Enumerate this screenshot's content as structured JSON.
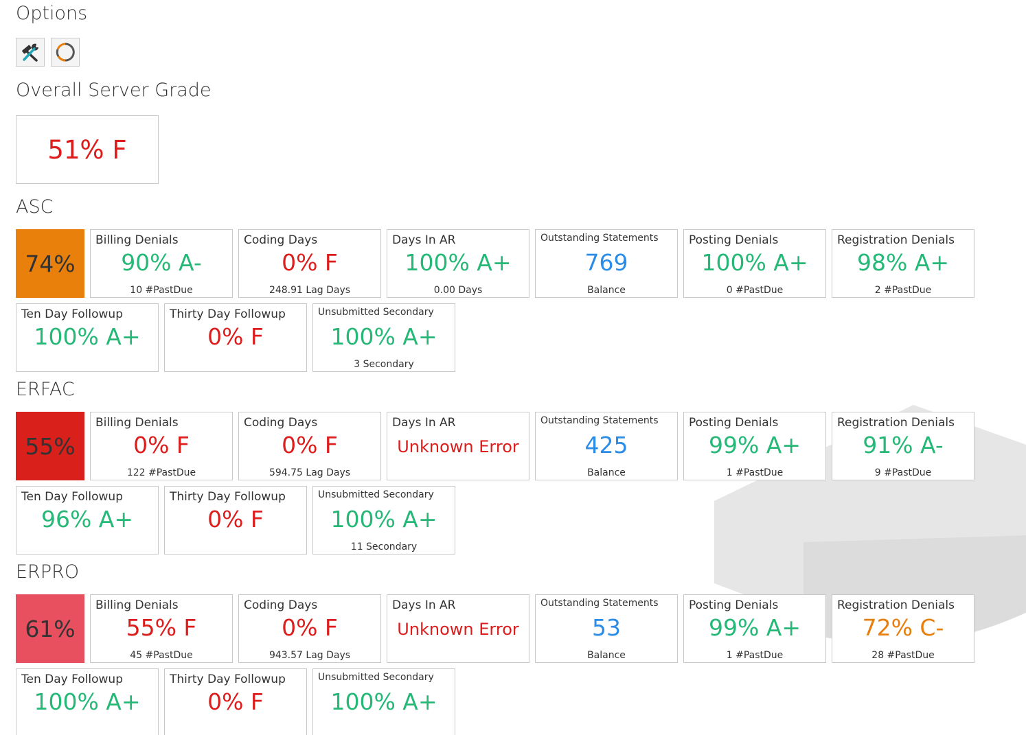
{
  "colors": {
    "green": "#25b877",
    "red": "#dd1c1c",
    "orange": "#e87e0c",
    "blue": "#2b8ce8",
    "grade_orange": "#e8800b",
    "grade_red": "#d9201a",
    "grade_pink": "#e85060"
  },
  "options": {
    "title": "Options",
    "buttons": [
      {
        "name": "tools-icon"
      },
      {
        "name": "refresh-icon"
      }
    ]
  },
  "overall": {
    "title": "Overall Server Grade",
    "value": "51% F",
    "color": "#dd1c1c"
  },
  "groups": [
    {
      "name": "ASC",
      "grade": "74%",
      "grade_color": "#e8800b",
      "tiles": [
        {
          "label": "Billing Denials",
          "value": "90% A-",
          "color": "#25b877",
          "sub": "10 #PastDue"
        },
        {
          "label": "Coding Days",
          "value": "0% F",
          "color": "#dd1c1c",
          "sub": "248.91 Lag Days"
        },
        {
          "label": "Days In AR",
          "value": "100% A+",
          "color": "#25b877",
          "sub": "0.00 Days"
        },
        {
          "label": "Outstanding Statements",
          "small": true,
          "value": "769",
          "color": "#2b8ce8",
          "sub": "Balance"
        },
        {
          "label": "Posting Denials",
          "value": "100% A+",
          "color": "#25b877",
          "sub": "0 #PastDue"
        },
        {
          "label": "Registration Denials",
          "value": "98% A+",
          "color": "#25b877",
          "sub": "2 #PastDue"
        }
      ],
      "tiles2": [
        {
          "label": "Ten Day Followup",
          "value": "100% A+",
          "color": "#25b877",
          "sub": ""
        },
        {
          "label": "Thirty Day Followup",
          "value": "0% F",
          "color": "#dd1c1c",
          "sub": ""
        },
        {
          "label": "Unsubmitted Secondary",
          "small": true,
          "value": "100% A+",
          "color": "#25b877",
          "sub": "3 Secondary"
        }
      ]
    },
    {
      "name": "ERFAC",
      "grade": "55%",
      "grade_color": "#d9201a",
      "tiles": [
        {
          "label": "Billing Denials",
          "value": "0% F",
          "color": "#dd1c1c",
          "sub": "122 #PastDue"
        },
        {
          "label": "Coding Days",
          "value": "0% F",
          "color": "#dd1c1c",
          "sub": "594.75 Lag Days"
        },
        {
          "label": "Days In AR",
          "value": "Unknown Error",
          "color": "#dd1c1c",
          "err": true,
          "sub": ""
        },
        {
          "label": "Outstanding Statements",
          "small": true,
          "value": "425",
          "color": "#2b8ce8",
          "sub": "Balance"
        },
        {
          "label": "Posting Denials",
          "value": "99% A+",
          "color": "#25b877",
          "sub": "1 #PastDue"
        },
        {
          "label": "Registration Denials",
          "value": "91% A-",
          "color": "#25b877",
          "sub": "9 #PastDue"
        }
      ],
      "tiles2": [
        {
          "label": "Ten Day Followup",
          "value": "96% A+",
          "color": "#25b877",
          "sub": ""
        },
        {
          "label": "Thirty Day Followup",
          "value": "0% F",
          "color": "#dd1c1c",
          "sub": ""
        },
        {
          "label": "Unsubmitted Secondary",
          "small": true,
          "value": "100% A+",
          "color": "#25b877",
          "sub": "11 Secondary"
        }
      ]
    },
    {
      "name": "ERPRO",
      "grade": "61%",
      "grade_color": "#e85060",
      "tiles": [
        {
          "label": "Billing Denials",
          "value": "55% F",
          "color": "#dd1c1c",
          "sub": "45 #PastDue"
        },
        {
          "label": "Coding Days",
          "value": "0% F",
          "color": "#dd1c1c",
          "sub": "943.57 Lag Days"
        },
        {
          "label": "Days In AR",
          "value": "Unknown Error",
          "color": "#dd1c1c",
          "err": true,
          "sub": ""
        },
        {
          "label": "Outstanding Statements",
          "small": true,
          "value": "53",
          "color": "#2b8ce8",
          "sub": "Balance"
        },
        {
          "label": "Posting Denials",
          "value": "99% A+",
          "color": "#25b877",
          "sub": "1 #PastDue"
        },
        {
          "label": "Registration Denials",
          "value": "72% C-",
          "color": "#e87e0c",
          "sub": "28 #PastDue"
        }
      ],
      "tiles2": [
        {
          "label": "Ten Day Followup",
          "value": "100% A+",
          "color": "#25b877",
          "sub": ""
        },
        {
          "label": "Thirty Day Followup",
          "value": "0% F",
          "color": "#dd1c1c",
          "sub": ""
        },
        {
          "label": "Unsubmitted Secondary",
          "small": true,
          "value": "100% A+",
          "color": "#25b877",
          "sub": ""
        }
      ]
    }
  ]
}
